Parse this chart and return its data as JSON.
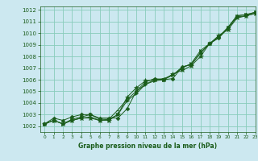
{
  "title": "Graphe pression niveau de la mer (hPa)",
  "bg_color": "#cce8f0",
  "grid_color": "#88ccbb",
  "line_color": "#1a5c1a",
  "xlim": [
    -0.5,
    23
  ],
  "ylim": [
    1001.5,
    1012.3
  ],
  "xticks": [
    0,
    1,
    2,
    3,
    4,
    5,
    6,
    7,
    8,
    9,
    10,
    11,
    12,
    13,
    14,
    15,
    16,
    17,
    18,
    19,
    20,
    21,
    22,
    23
  ],
  "yticks": [
    1002,
    1003,
    1004,
    1005,
    1006,
    1007,
    1008,
    1009,
    1010,
    1011,
    1012
  ],
  "series": [
    [
      1002.2,
      1002.7,
      1002.5,
      1002.8,
      1003.0,
      1003.0,
      1002.7,
      1002.7,
      1002.7,
      1003.5,
      1005.0,
      1005.8,
      1006.1,
      1006.0,
      1006.1,
      1007.1,
      1007.3,
      1008.3,
      1009.1,
      1009.6,
      1010.5,
      1011.5,
      1011.6,
      1011.8
    ],
    [
      1002.2,
      1002.5,
      1002.2,
      1002.6,
      1002.8,
      1003.0,
      1002.6,
      1002.6,
      1003.0,
      1004.2,
      1004.8,
      1005.6,
      1005.9,
      1006.0,
      1006.4,
      1007.0,
      1007.4,
      1008.5,
      1009.1,
      1009.7,
      1010.5,
      1011.5,
      1011.6,
      1011.8
    ],
    [
      1002.2,
      1002.5,
      1002.2,
      1002.5,
      1002.7,
      1002.7,
      1002.5,
      1002.5,
      1003.0,
      1004.5,
      1005.3,
      1005.9,
      1006.0,
      1006.0,
      1006.5,
      1006.8,
      1007.2,
      1008.0,
      1009.1,
      1009.8,
      1010.3,
      1011.3,
      1011.5,
      1011.7
    ],
    [
      1002.2,
      1002.5,
      1002.2,
      1002.5,
      1002.7,
      1002.8,
      1002.5,
      1002.6,
      1003.4,
      1004.3,
      1005.0,
      1005.6,
      1006.0,
      1006.1,
      1006.4,
      1007.1,
      1007.3,
      1008.3,
      1009.1,
      1009.6,
      1010.4,
      1011.4,
      1011.5,
      1011.7
    ]
  ],
  "marker_styles": [
    "D",
    ">",
    "*",
    "+"
  ],
  "marker_sizes": [
    2.5,
    3,
    4,
    3
  ]
}
